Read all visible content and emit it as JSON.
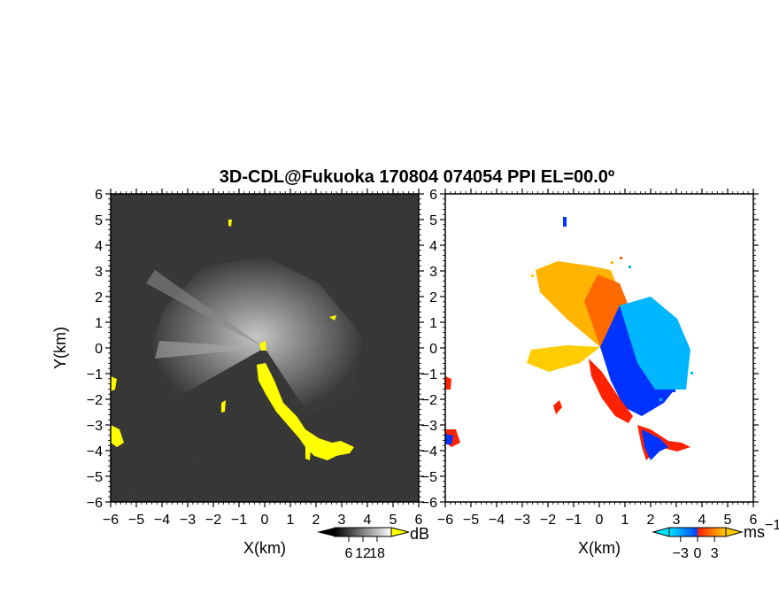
{
  "chart_data": [
    {
      "type": "heatmap",
      "panel": "left",
      "title": "3D-CDL@Fukuoka 170804 074054 PPI EL=00.0º",
      "xlabel": "X(km)",
      "ylabel": "Y(km)",
      "xlim": [
        -6,
        6
      ],
      "ylim": [
        -6,
        6
      ],
      "xticks": [
        "−6",
        "−5",
        "−4",
        "−3",
        "−2",
        "−1",
        "0",
        "1",
        "2",
        "3",
        "4",
        "5",
        "6"
      ],
      "yticks": [
        "6",
        "5",
        "4",
        "3",
        "2",
        "1",
        "0",
        "−1",
        "−2",
        "−3",
        "−4",
        "−5",
        "−6"
      ],
      "colorbar": {
        "unit": "dB",
        "ticks": [
          "6",
          "12",
          "18"
        ],
        "tick_values": [
          6,
          12,
          18
        ],
        "range": [
          0,
          24
        ],
        "colors": [
          "#000000",
          "#ffffff"
        ],
        "overflow_color": "#ffff00"
      },
      "background_color": "#2a2a2a",
      "highlight_color": "#ffff00"
    },
    {
      "type": "heatmap",
      "panel": "right",
      "xlabel": "X(km)",
      "ylabel": "",
      "xlim": [
        -6,
        6
      ],
      "ylim": [
        -6,
        6
      ],
      "xticks": [
        "−6",
        "−5",
        "−4",
        "−3",
        "−2",
        "−1",
        "0",
        "1",
        "2",
        "3",
        "4",
        "5",
        "6"
      ],
      "yticks": [
        "6",
        "5",
        "4",
        "3",
        "2",
        "1",
        "0",
        "−1",
        "−2",
        "−3",
        "−4",
        "−5",
        "−6"
      ],
      "colorbar": {
        "unit": "ms",
        "unit_exponent": "−1",
        "ticks": [
          "−3",
          "0",
          "3"
        ],
        "tick_values": [
          -3,
          0,
          3
        ],
        "range": [
          -5,
          5
        ],
        "colors": [
          "#00e5ff",
          "#0044ff",
          "#ff2200",
          "#ffcc00"
        ]
      },
      "background_color": "#ffffff"
    }
  ]
}
